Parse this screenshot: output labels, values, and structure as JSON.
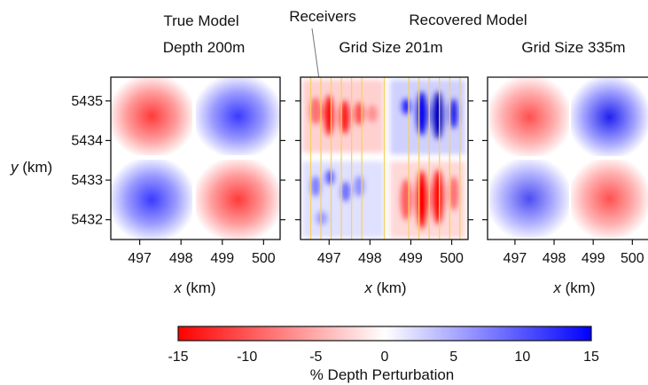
{
  "titles": {
    "true_model_line1": "True Model",
    "true_model_line2": "Depth 200m",
    "receivers": "Receivers",
    "recovered_model": "Recovered Model",
    "grid201": "Grid Size 201m",
    "grid335": "Grid Size 335m"
  },
  "axes": {
    "ylabel_var": "y",
    "ylabel_unit": " (km)",
    "xlabel_var": "x",
    "xlabel_unit": " (km)"
  },
  "colorbar": {
    "label": "% Depth Perturbation",
    "ticks": [
      "-15",
      "-10",
      "-5",
      "0",
      "5",
      "10",
      "15"
    ],
    "min": -15,
    "max": 15,
    "colors": {
      "negative": "#ff0000",
      "zero": "#ffffff",
      "positive": "#0000ff"
    }
  },
  "chart_data": [
    {
      "type": "heatmap",
      "title": "True Model Depth 200m",
      "xlabel": "x (km)",
      "ylabel": "y (km)",
      "xticks": [
        "497",
        "498",
        "499",
        "500"
      ],
      "yticks": [
        "5435",
        "5434",
        "5433",
        "5432"
      ],
      "xlim": [
        496.3,
        500.4
      ],
      "ylim": [
        5431.5,
        5435.6
      ],
      "quadrant_peaks": {
        "top_left": -12,
        "top_right": 12,
        "bottom_left": 12,
        "bottom_right": -12
      }
    },
    {
      "type": "heatmap",
      "title": "Recovered Model Grid Size 201m",
      "xlabel": "x (km)",
      "xticks": [
        "497",
        "498",
        "499",
        "500"
      ],
      "yticks": [
        "5435",
        "5434",
        "5433",
        "5432"
      ],
      "xlim": [
        496.3,
        500.4
      ],
      "ylim": [
        5431.5,
        5435.6
      ],
      "receiver_lines_x_km": [
        496.55,
        496.8,
        497.05,
        497.3,
        497.55,
        497.8,
        498.35,
        498.95,
        499.2,
        499.45,
        499.7,
        499.95,
        500.2
      ],
      "quadrant_peaks": {
        "top_left": -14,
        "top_right": 15,
        "bottom_left": 7,
        "bottom_right": -15
      }
    },
    {
      "type": "heatmap",
      "title": "Recovered Model Grid Size 335m",
      "xlabel": "x (km)",
      "xticks": [
        "497",
        "498",
        "499",
        "500"
      ],
      "yticks": [
        "5435",
        "5434",
        "5433",
        "5432"
      ],
      "xlim": [
        496.3,
        500.4
      ],
      "ylim": [
        5431.5,
        5435.6
      ],
      "quadrant_peaks": {
        "top_left": -10,
        "top_right": 12,
        "bottom_left": 8,
        "bottom_right": -12
      }
    }
  ]
}
